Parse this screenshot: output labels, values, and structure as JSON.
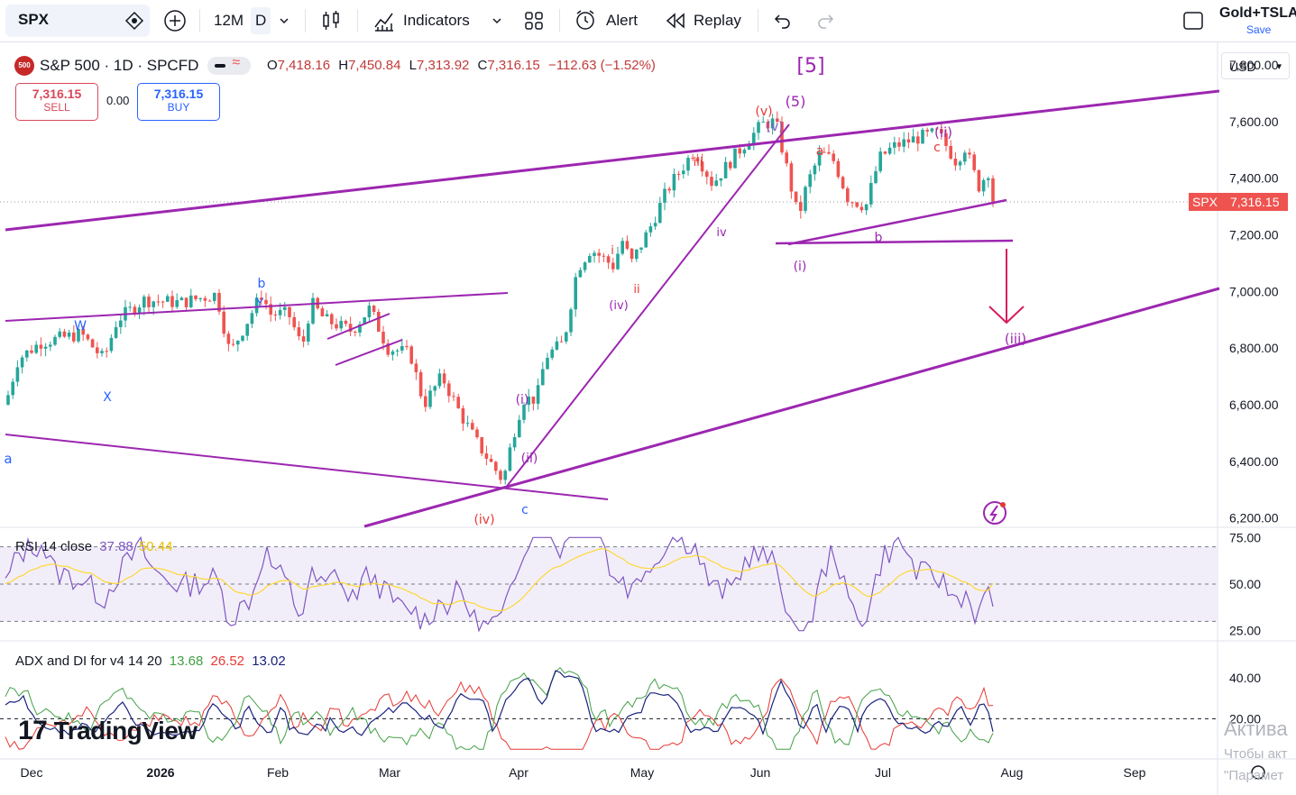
{
  "toolbar": {
    "symbol": "SPX",
    "interval_range": "12M",
    "interval": "D",
    "indicators_label": "Indicators",
    "alert_label": "Alert",
    "replay_label": "Replay",
    "layout_name": "Gold+TSLA",
    "save_label": "Save"
  },
  "legend": {
    "badge": "500",
    "title": "S&P 500 · 1D · SPCFD",
    "o_key": "O",
    "o": "7,418.16",
    "h_key": "H",
    "h": "7,450.84",
    "l_key": "L",
    "l": "7,313.92",
    "c_key": "C",
    "c": "7,316.15",
    "change": "−112.63 (−1.52%)"
  },
  "trade": {
    "sell_price": "7,316.15",
    "sell_label": "SELL",
    "spread": "0.00",
    "buy_price": "7,316.15",
    "buy_label": "BUY"
  },
  "currency": "USD",
  "price_tag": {
    "symbol": "SPX",
    "value": "7,316.15"
  },
  "rsi": {
    "label": "RSI 14 close",
    "v1": "37.88",
    "v2": "50.44"
  },
  "adx": {
    "label": "ADX and DI for v4 14 20",
    "v1": "13.68",
    "v2": "26.52",
    "v3": "13.02"
  },
  "watermark": "TradingView",
  "activation": {
    "line1": "Актива",
    "line2": "Чтобы акт",
    "line3": "\"Парамет"
  },
  "colors": {
    "up": "#26a69a",
    "down": "#ef5350",
    "purple": "#9c27b0",
    "magenta": "#d81b60",
    "blue": "#2962ff",
    "rsi": "#7e57c2",
    "rsi_ma": "#fdd835"
  },
  "chart_data": [
    {
      "type": "candlestick",
      "title": "S&P 500 · 1D · SPCFD",
      "x_ticks": [
        "Dec",
        "2026",
        "Feb",
        "Mar",
        "Apr",
        "May",
        "Jun",
        "Jul",
        "Aug",
        "Sep"
      ],
      "y_ticks": [
        "7,800.00",
        "7,600.00",
        "7,400.00",
        "7,200.00",
        "7,000.00",
        "6,800.00",
        "6,600.00",
        "6,400.00",
        "6,200.00"
      ],
      "ylim": [
        6170,
        7870
      ],
      "last_price": 7316.15,
      "wave_labels": [
        "[5]",
        "(5)",
        "(v)",
        "(v)",
        "iii",
        "iv",
        "i",
        "ii",
        "(iv)",
        "(i)",
        "(ii)",
        "(iv)",
        "c",
        "a",
        "(ii)",
        "c",
        "b",
        "(i)",
        "(iii)",
        "W",
        "X",
        "Y",
        "b",
        "a"
      ]
    },
    {
      "type": "line",
      "title": "RSI 14 close",
      "y_ticks": [
        "75.00",
        "50.00",
        "25.00"
      ],
      "ylim": [
        20,
        80
      ],
      "series": [
        {
          "name": "RSI",
          "last": 37.88
        },
        {
          "name": "RSI MA",
          "last": 50.44
        }
      ]
    },
    {
      "type": "line",
      "title": "ADX and DI for v4 14 20",
      "y_ticks": [
        "40.00",
        "20.00"
      ],
      "series": [
        {
          "name": "ADX",
          "last": 13.68
        },
        {
          "name": "+DI",
          "last": 26.52
        },
        {
          "name": "-DI",
          "last": 13.02
        }
      ]
    }
  ]
}
